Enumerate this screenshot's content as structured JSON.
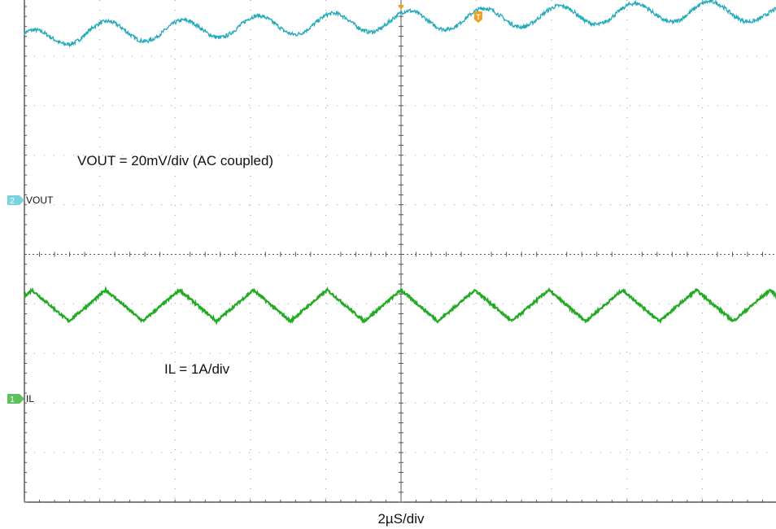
{
  "chart_data": {
    "type": "line",
    "xlabel": "2µS/div",
    "divisions": {
      "x": 10,
      "y": 10
    },
    "grid": true,
    "annotations": {
      "vout": "VOUT = 20mV/div (AC coupled)",
      "il": "IL = 1A/div"
    },
    "trigger": {
      "marker": "T"
    },
    "series": [
      {
        "name": "VOUT",
        "channel": "2",
        "color": "#22aabb",
        "unit": "mV",
        "scale_per_div": 20,
        "coupling": "AC",
        "period_div": 1.0,
        "amplitude_div": 0.2,
        "x": [
          0,
          0.85,
          1.85,
          2.85,
          3.85,
          4.85,
          5.85,
          6.85,
          7.85,
          8.85,
          9.6,
          10.0
        ],
        "y_div": [
          -0.1,
          0.1,
          0.1,
          0.2,
          0.25,
          0.3,
          0.35,
          0.4,
          0.45,
          0.5,
          0.5,
          0.4
        ],
        "noise_div": 0.04
      },
      {
        "name": "IL",
        "channel": "1",
        "color": "#22aa22",
        "unit": "A",
        "scale_per_div": 1,
        "period_div": 0.98,
        "peak_div": -0.72,
        "valley_div": -1.35,
        "first_peak_x": 0.1,
        "noise_div": 0.025
      }
    ],
    "markers": {
      "vout_label": "VOUT",
      "il_label": "IL"
    }
  }
}
